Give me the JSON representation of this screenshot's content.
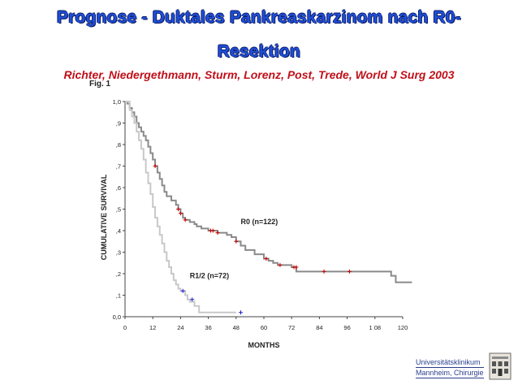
{
  "slide": {
    "title_line1": "Prognose - Duktales Pankreaskarzinom nach R0-",
    "title_line2": "Resektion",
    "subtitle": "Richter, Niedergethmann, Sturm, Lorenz, Post, Trede, World J Surg 2003",
    "fig_label": "Fig. 1",
    "logo_line1": "Universitätsklinikum",
    "logo_line2": "Mannheim, Chirurgie"
  },
  "colors": {
    "title": "#1f4fd8",
    "subtitle": "#c0101a",
    "r0_line": "#8a8a8a",
    "r12_line": "#c8c8c8",
    "r0_censor": "#cc0000",
    "r12_censor": "#1a1acc"
  },
  "chart_data": {
    "type": "line",
    "xlabel": "MONTHS",
    "ylabel": "CUMULATIVE SURVIVAL",
    "xlim": [
      0,
      120
    ],
    "ylim": [
      0,
      1
    ],
    "x_ticks": [
      "0",
      "12",
      "24",
      "36",
      "48",
      "60",
      "72",
      "84",
      "96",
      "1 08",
      "120"
    ],
    "x_tick_values": [
      0,
      12,
      24,
      36,
      48,
      60,
      72,
      84,
      96,
      108,
      120
    ],
    "y_ticks": [
      "0,0",
      ",1",
      ",2",
      ",3",
      ",4",
      ",5",
      ",6",
      ",7",
      ",8",
      ",9",
      "1,0"
    ],
    "y_tick_values": [
      0,
      0.1,
      0.2,
      0.3,
      0.4,
      0.5,
      0.6,
      0.7,
      0.8,
      0.9,
      1.0
    ],
    "series": [
      {
        "name": "R0 (n=122)",
        "label": "R0 (n=122)",
        "label_at": [
          50,
          0.43
        ],
        "steps": [
          [
            0,
            1.0
          ],
          [
            1,
            0.99
          ],
          [
            2,
            0.97
          ],
          [
            3,
            0.95
          ],
          [
            4,
            0.93
          ],
          [
            5,
            0.9
          ],
          [
            6,
            0.88
          ],
          [
            7,
            0.86
          ],
          [
            8,
            0.84
          ],
          [
            9,
            0.82
          ],
          [
            10,
            0.79
          ],
          [
            11,
            0.76
          ],
          [
            12,
            0.73
          ],
          [
            13,
            0.7
          ],
          [
            14,
            0.67
          ],
          [
            15,
            0.64
          ],
          [
            16,
            0.61
          ],
          [
            17,
            0.58
          ],
          [
            18,
            0.56
          ],
          [
            20,
            0.54
          ],
          [
            22,
            0.52
          ],
          [
            23,
            0.5
          ],
          [
            24,
            0.48
          ],
          [
            25,
            0.46
          ],
          [
            26,
            0.45
          ],
          [
            28,
            0.44
          ],
          [
            30,
            0.43
          ],
          [
            31,
            0.42
          ],
          [
            33,
            0.41
          ],
          [
            36,
            0.4
          ],
          [
            40,
            0.39
          ],
          [
            44,
            0.38
          ],
          [
            46,
            0.37
          ],
          [
            48,
            0.35
          ],
          [
            50,
            0.33
          ],
          [
            52,
            0.31
          ],
          [
            56,
            0.29
          ],
          [
            60,
            0.27
          ],
          [
            62,
            0.26
          ],
          [
            64,
            0.25
          ],
          [
            66,
            0.24
          ],
          [
            72,
            0.23
          ],
          [
            74,
            0.21
          ],
          [
            115,
            0.19
          ],
          [
            117,
            0.16
          ],
          [
            124,
            0.16
          ]
        ],
        "censored": [
          [
            13,
            0.7
          ],
          [
            23,
            0.5
          ],
          [
            24,
            0.48
          ],
          [
            26,
            0.45
          ],
          [
            37,
            0.4
          ],
          [
            38,
            0.4
          ],
          [
            40,
            0.39
          ],
          [
            48,
            0.35
          ],
          [
            61,
            0.27
          ],
          [
            67,
            0.24
          ],
          [
            73,
            0.23
          ],
          [
            74,
            0.23
          ],
          [
            86,
            0.21
          ],
          [
            97,
            0.21
          ]
        ]
      },
      {
        "name": "R1/2 (n=72)",
        "label": "R1/2 (n=72)",
        "label_at": [
          28,
          0.18
        ],
        "steps": [
          [
            0,
            1.0
          ],
          [
            2,
            0.96
          ],
          [
            3,
            0.93
          ],
          [
            4,
            0.9
          ],
          [
            5,
            0.86
          ],
          [
            6,
            0.82
          ],
          [
            7,
            0.78
          ],
          [
            8,
            0.73
          ],
          [
            9,
            0.67
          ],
          [
            10,
            0.62
          ],
          [
            11,
            0.57
          ],
          [
            12,
            0.51
          ],
          [
            13,
            0.46
          ],
          [
            14,
            0.42
          ],
          [
            15,
            0.38
          ],
          [
            16,
            0.34
          ],
          [
            17,
            0.3
          ],
          [
            18,
            0.26
          ],
          [
            19,
            0.23
          ],
          [
            20,
            0.2
          ],
          [
            21,
            0.17
          ],
          [
            22,
            0.15
          ],
          [
            23,
            0.13
          ],
          [
            24,
            0.12
          ],
          [
            26,
            0.1
          ],
          [
            27,
            0.08
          ],
          [
            28,
            0.07
          ],
          [
            30,
            0.05
          ],
          [
            32,
            0.02
          ],
          [
            48,
            0.02
          ]
        ],
        "censored": [
          [
            25,
            0.12
          ],
          [
            29,
            0.08
          ],
          [
            50,
            0.02
          ]
        ]
      }
    ]
  }
}
